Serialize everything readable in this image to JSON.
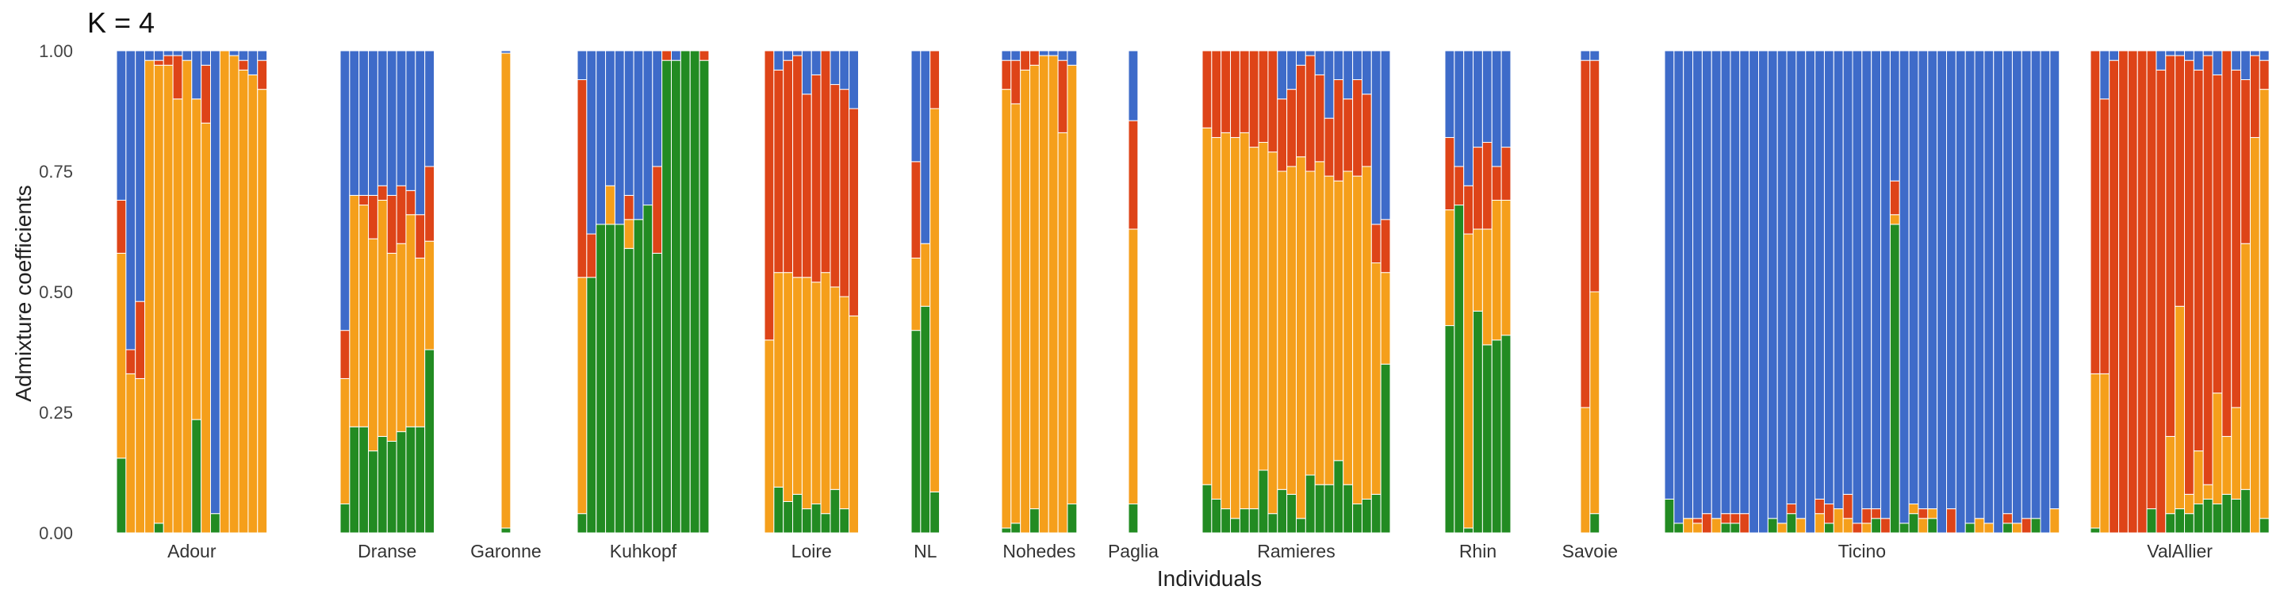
{
  "chart_data": {
    "type": "bar",
    "stacked": true,
    "title": "K = 4",
    "xlabel": "Individuals",
    "ylabel": "Admixture coefficients",
    "ylim": [
      0,
      1
    ],
    "yticks": [
      "0.00",
      "0.25",
      "0.50",
      "0.75",
      "1.00"
    ],
    "grid": false,
    "stack_order": [
      "green",
      "orange",
      "red",
      "blue"
    ],
    "colors": {
      "green": "#228b22",
      "orange": "#f59f1b",
      "red": "#de4418",
      "blue": "#3e6bc9"
    },
    "groups": [
      {
        "name": "Adour",
        "samples": [
          [
            0.155,
            0.425,
            0.11,
            0.31
          ],
          [
            0.0,
            0.33,
            0.05,
            0.62
          ],
          [
            0.0,
            0.32,
            0.16,
            0.52
          ],
          [
            0.0,
            0.98,
            0.0,
            0.02
          ],
          [
            0.02,
            0.95,
            0.01,
            0.02
          ],
          [
            0.0,
            0.97,
            0.02,
            0.01
          ],
          [
            0.0,
            0.9,
            0.09,
            0.01
          ],
          [
            0.0,
            0.98,
            0.0,
            0.02
          ],
          [
            0.235,
            0.665,
            0.0,
            0.1
          ],
          [
            0.0,
            0.85,
            0.12,
            0.03
          ],
          [
            0.04,
            0.0,
            0.0,
            0.96
          ],
          [
            0.0,
            1.0,
            0.0,
            0.0
          ],
          [
            0.0,
            0.99,
            0.0,
            0.01
          ],
          [
            0.0,
            0.96,
            0.02,
            0.02
          ],
          [
            0.0,
            0.95,
            0.0,
            0.05
          ],
          [
            0.0,
            0.92,
            0.06,
            0.02
          ]
        ]
      },
      {
        "name": "Dranse",
        "samples": [
          [
            0.06,
            0.26,
            0.1,
            0.58
          ],
          [
            0.22,
            0.48,
            0.0,
            0.3
          ],
          [
            0.22,
            0.46,
            0.02,
            0.3
          ],
          [
            0.17,
            0.44,
            0.09,
            0.3
          ],
          [
            0.2,
            0.49,
            0.03,
            0.28
          ],
          [
            0.19,
            0.39,
            0.12,
            0.3
          ],
          [
            0.21,
            0.39,
            0.12,
            0.28
          ],
          [
            0.22,
            0.44,
            0.05,
            0.29
          ],
          [
            0.22,
            0.35,
            0.09,
            0.34
          ],
          [
            0.38,
            0.225,
            0.155,
            0.24
          ]
        ]
      },
      {
        "name": "Garonne",
        "samples": [
          [
            0.01,
            0.985,
            0.0,
            0.005
          ]
        ]
      },
      {
        "name": "Kuhkopf",
        "samples": [
          [
            0.04,
            0.49,
            0.41,
            0.06
          ],
          [
            0.53,
            0.0,
            0.09,
            0.38
          ],
          [
            0.64,
            0.0,
            0.0,
            0.36
          ],
          [
            0.64,
            0.08,
            0.0,
            0.28
          ],
          [
            0.64,
            0.0,
            0.0,
            0.36
          ],
          [
            0.59,
            0.06,
            0.05,
            0.3
          ],
          [
            0.65,
            0.0,
            0.0,
            0.35
          ],
          [
            0.68,
            0.0,
            0.0,
            0.32
          ],
          [
            0.58,
            0.0,
            0.18,
            0.24
          ],
          [
            0.98,
            0.0,
            0.02,
            0.0
          ],
          [
            0.98,
            0.0,
            0.0,
            0.02
          ],
          [
            1.0,
            0.0,
            0.0,
            0.0
          ],
          [
            1.0,
            0.0,
            0.0,
            0.0
          ],
          [
            0.98,
            0.0,
            0.02,
            0.0
          ]
        ]
      },
      {
        "name": "Loire",
        "samples": [
          [
            0.0,
            0.4,
            0.6,
            0.0
          ],
          [
            0.095,
            0.445,
            0.42,
            0.04
          ],
          [
            0.065,
            0.475,
            0.44,
            0.02
          ],
          [
            0.08,
            0.45,
            0.46,
            0.01
          ],
          [
            0.05,
            0.48,
            0.38,
            0.09
          ],
          [
            0.06,
            0.46,
            0.43,
            0.05
          ],
          [
            0.04,
            0.5,
            0.46,
            0.0
          ],
          [
            0.09,
            0.42,
            0.42,
            0.07
          ],
          [
            0.05,
            0.44,
            0.43,
            0.08
          ],
          [
            0.0,
            0.45,
            0.43,
            0.12
          ]
        ]
      },
      {
        "name": "NL",
        "samples": [
          [
            0.42,
            0.15,
            0.2,
            0.23
          ],
          [
            0.47,
            0.13,
            0.0,
            0.4
          ],
          [
            0.085,
            0.795,
            0.12,
            0.0
          ]
        ]
      },
      {
        "name": "Nohedes",
        "samples": [
          [
            0.01,
            0.91,
            0.06,
            0.02
          ],
          [
            0.02,
            0.87,
            0.09,
            0.02
          ],
          [
            0.0,
            0.96,
            0.04,
            0.0
          ],
          [
            0.05,
            0.92,
            0.03,
            0.0
          ],
          [
            0.0,
            0.99,
            0.0,
            0.01
          ],
          [
            0.0,
            0.99,
            0.0,
            0.01
          ],
          [
            0.0,
            0.83,
            0.15,
            0.02
          ],
          [
            0.06,
            0.91,
            0.0,
            0.03
          ]
        ]
      },
      {
        "name": "Paglia",
        "samples": [
          [
            0.06,
            0.57,
            0.225,
            0.145
          ]
        ]
      },
      {
        "name": "Ramieres",
        "samples": [
          [
            0.1,
            0.74,
            0.16,
            0.0
          ],
          [
            0.07,
            0.75,
            0.18,
            0.0
          ],
          [
            0.05,
            0.78,
            0.17,
            0.0
          ],
          [
            0.03,
            0.79,
            0.18,
            0.0
          ],
          [
            0.05,
            0.78,
            0.17,
            0.0
          ],
          [
            0.05,
            0.75,
            0.2,
            0.0
          ],
          [
            0.13,
            0.68,
            0.19,
            0.0
          ],
          [
            0.04,
            0.75,
            0.21,
            0.0
          ],
          [
            0.09,
            0.66,
            0.15,
            0.1
          ],
          [
            0.08,
            0.68,
            0.16,
            0.08
          ],
          [
            0.03,
            0.75,
            0.19,
            0.03
          ],
          [
            0.12,
            0.63,
            0.24,
            0.01
          ],
          [
            0.1,
            0.67,
            0.18,
            0.05
          ],
          [
            0.1,
            0.64,
            0.12,
            0.14
          ],
          [
            0.15,
            0.58,
            0.21,
            0.06
          ],
          [
            0.1,
            0.65,
            0.15,
            0.1
          ],
          [
            0.06,
            0.68,
            0.2,
            0.06
          ],
          [
            0.07,
            0.69,
            0.15,
            0.09
          ],
          [
            0.08,
            0.48,
            0.08,
            0.36
          ],
          [
            0.35,
            0.19,
            0.11,
            0.35
          ]
        ]
      },
      {
        "name": "Rhin",
        "samples": [
          [
            0.43,
            0.24,
            0.15,
            0.18
          ],
          [
            0.68,
            0.0,
            0.08,
            0.24
          ],
          [
            0.01,
            0.61,
            0.1,
            0.28
          ],
          [
            0.46,
            0.17,
            0.17,
            0.2
          ],
          [
            0.39,
            0.24,
            0.18,
            0.19
          ],
          [
            0.4,
            0.29,
            0.07,
            0.24
          ],
          [
            0.41,
            0.28,
            0.11,
            0.2
          ]
        ]
      },
      {
        "name": "Savoie",
        "samples": [
          [
            0.0,
            0.26,
            0.72,
            0.02
          ],
          [
            0.04,
            0.46,
            0.48,
            0.02
          ]
        ]
      },
      {
        "name": "Ticino",
        "samples": [
          [
            0.07,
            0.0,
            0.0,
            0.93
          ],
          [
            0.02,
            0.0,
            0.0,
            0.98
          ],
          [
            0.0,
            0.03,
            0.0,
            0.97
          ],
          [
            0.0,
            0.02,
            0.01,
            0.97
          ],
          [
            0.0,
            0.0,
            0.04,
            0.96
          ],
          [
            0.0,
            0.03,
            0.0,
            0.97
          ],
          [
            0.02,
            0.0,
            0.02,
            0.96
          ],
          [
            0.02,
            0.0,
            0.02,
            0.96
          ],
          [
            0.0,
            0.0,
            0.04,
            0.96
          ],
          [
            0.0,
            0.0,
            0.0,
            1.0
          ],
          [
            0.0,
            0.0,
            0.0,
            1.0
          ],
          [
            0.03,
            0.0,
            0.0,
            0.97
          ],
          [
            0.0,
            0.02,
            0.0,
            0.98
          ],
          [
            0.04,
            0.0,
            0.02,
            0.94
          ],
          [
            0.0,
            0.03,
            0.0,
            0.97
          ],
          [
            0.0,
            0.0,
            0.0,
            1.0
          ],
          [
            0.0,
            0.04,
            0.03,
            0.93
          ],
          [
            0.02,
            0.0,
            0.04,
            0.94
          ],
          [
            0.0,
            0.05,
            0.0,
            0.95
          ],
          [
            0.0,
            0.03,
            0.05,
            0.92
          ],
          [
            0.0,
            0.0,
            0.02,
            0.98
          ],
          [
            0.0,
            0.02,
            0.03,
            0.95
          ],
          [
            0.03,
            0.0,
            0.02,
            0.95
          ],
          [
            0.0,
            0.0,
            0.03,
            0.97
          ],
          [
            0.64,
            0.02,
            0.07,
            0.27
          ],
          [
            0.02,
            0.0,
            0.0,
            0.98
          ],
          [
            0.04,
            0.02,
            0.0,
            0.94
          ],
          [
            0.0,
            0.03,
            0.02,
            0.95
          ],
          [
            0.03,
            0.02,
            0.0,
            0.95
          ],
          [
            0.0,
            0.0,
            0.0,
            1.0
          ],
          [
            0.0,
            0.0,
            0.05,
            0.95
          ],
          [
            0.0,
            0.0,
            0.0,
            1.0
          ],
          [
            0.02,
            0.0,
            0.0,
            0.98
          ],
          [
            0.0,
            0.03,
            0.0,
            0.97
          ],
          [
            0.0,
            0.02,
            0.0,
            0.98
          ],
          [
            0.0,
            0.0,
            0.0,
            1.0
          ],
          [
            0.02,
            0.0,
            0.02,
            0.96
          ],
          [
            0.0,
            0.02,
            0.0,
            0.98
          ],
          [
            0.0,
            0.0,
            0.03,
            0.97
          ],
          [
            0.03,
            0.0,
            0.0,
            0.97
          ],
          [
            0.0,
            0.0,
            0.0,
            1.0
          ],
          [
            0.0,
            0.05,
            0.0,
            0.95
          ]
        ]
      },
      {
        "name": "ValAllier",
        "samples": [
          [
            0.01,
            0.32,
            0.67,
            0.0
          ],
          [
            0.0,
            0.33,
            0.57,
            0.1
          ],
          [
            0.0,
            0.0,
            0.98,
            0.02
          ],
          [
            0.0,
            0.0,
            1.0,
            0.0
          ],
          [
            0.0,
            0.0,
            1.0,
            0.0
          ],
          [
            0.0,
            0.0,
            1.0,
            0.0
          ],
          [
            0.05,
            0.0,
            0.95,
            0.0
          ],
          [
            0.0,
            0.0,
            0.96,
            0.04
          ],
          [
            0.04,
            0.16,
            0.79,
            0.01
          ],
          [
            0.05,
            0.42,
            0.52,
            0.01
          ],
          [
            0.04,
            0.04,
            0.9,
            0.02
          ],
          [
            0.06,
            0.11,
            0.79,
            0.04
          ],
          [
            0.07,
            0.03,
            0.89,
            0.01
          ],
          [
            0.06,
            0.23,
            0.66,
            0.05
          ],
          [
            0.08,
            0.12,
            0.8,
            0.0
          ],
          [
            0.07,
            0.19,
            0.7,
            0.04
          ],
          [
            0.09,
            0.51,
            0.34,
            0.06
          ],
          [
            0.0,
            0.82,
            0.17,
            0.01
          ],
          [
            0.03,
            0.89,
            0.06,
            0.02
          ]
        ]
      }
    ]
  }
}
